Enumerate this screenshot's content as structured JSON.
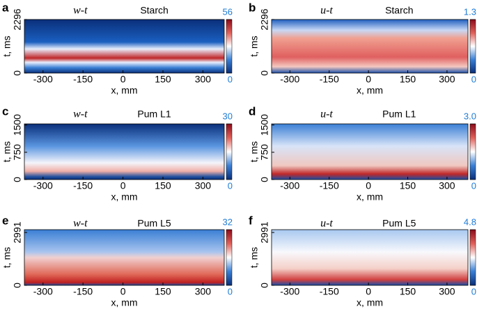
{
  "chart_data": [
    {
      "type": "heatmap",
      "panel_label": "a",
      "title": "w-t",
      "subtitle": "Starch",
      "xlabel": "x, mm",
      "ylabel": "t, ms",
      "xlim": [
        -370,
        380
      ],
      "ylim": [
        0,
        2296
      ],
      "xticks": [
        -300,
        -150,
        0,
        150,
        300
      ],
      "yticks": [
        0,
        2296
      ],
      "clim": [
        0,
        56
      ],
      "cticks": [
        0,
        56
      ],
      "colormap": [
        "#0a2f7a",
        "#3a7fd5",
        "#ffffff",
        "#e0605a",
        "#8b0a1a"
      ]
    },
    {
      "type": "heatmap",
      "panel_label": "b",
      "title": "u-t",
      "subtitle": "Starch",
      "xlabel": "x, mm",
      "ylabel": "t, ms",
      "xlim": [
        -370,
        380
      ],
      "ylim": [
        0,
        2296
      ],
      "xticks": [
        -300,
        -150,
        0,
        150,
        300
      ],
      "yticks": [
        0,
        2296
      ],
      "clim": [
        0,
        1.3
      ],
      "cticks": [
        0,
        1.3
      ],
      "colormap": [
        "#0a2f7a",
        "#3a7fd5",
        "#ffffff",
        "#e0605a",
        "#8b0a1a"
      ]
    },
    {
      "type": "heatmap",
      "panel_label": "c",
      "title": "w-t",
      "subtitle": "Pum L1",
      "xlabel": "x, mm",
      "ylabel": "t, ms",
      "xlim": [
        -370,
        380
      ],
      "ylim": [
        0,
        1530
      ],
      "xticks": [
        -300,
        -150,
        0,
        150,
        300
      ],
      "yticks": [
        0,
        750,
        1500
      ],
      "clim": [
        0,
        30
      ],
      "cticks": [
        0,
        30
      ],
      "colormap": [
        "#0a2f7a",
        "#3a7fd5",
        "#ffffff",
        "#e0605a",
        "#8b0a1a"
      ]
    },
    {
      "type": "heatmap",
      "panel_label": "d",
      "title": "u-t",
      "subtitle": "Pum L1",
      "xlabel": "x, mm",
      "ylabel": "t, ms",
      "xlim": [
        -370,
        380
      ],
      "ylim": [
        0,
        1530
      ],
      "xticks": [
        -300,
        -150,
        0,
        150,
        300
      ],
      "yticks": [
        0,
        750,
        1500
      ],
      "clim": [
        0,
        3.0
      ],
      "cticks": [
        0,
        {
          "value": 3,
          "label": "3.0"
        }
      ],
      "colormap": [
        "#0a2f7a",
        "#3a7fd5",
        "#ffffff",
        "#e0605a",
        "#8b0a1a"
      ]
    },
    {
      "type": "heatmap",
      "panel_label": "e",
      "title": "w-t",
      "subtitle": "Pum L5",
      "xlabel": "x, mm",
      "ylabel": "t, ms",
      "xlim": [
        -370,
        380
      ],
      "ylim": [
        0,
        3150
      ],
      "xticks": [
        -300,
        -150,
        0,
        150,
        300
      ],
      "yticks": [
        0,
        2991
      ],
      "clim": [
        0,
        32
      ],
      "cticks": [
        0,
        32
      ],
      "colormap": [
        "#0a2f7a",
        "#3a7fd5",
        "#ffffff",
        "#e0605a",
        "#8b0a1a"
      ]
    },
    {
      "type": "heatmap",
      "panel_label": "f",
      "title": "u-t",
      "subtitle": "Pum L5",
      "xlabel": "x, mm",
      "ylabel": "t, ms",
      "xlim": [
        -370,
        380
      ],
      "ylim": [
        0,
        3150
      ],
      "xticks": [
        -300,
        -150,
        0,
        150,
        300
      ],
      "yticks": [
        0,
        2991
      ],
      "clim": [
        0,
        4.8
      ],
      "cticks": [
        0,
        4.8
      ],
      "colormap": [
        "#0a2f7a",
        "#3a7fd5",
        "#ffffff",
        "#e0605a",
        "#8b0a1a"
      ]
    }
  ]
}
